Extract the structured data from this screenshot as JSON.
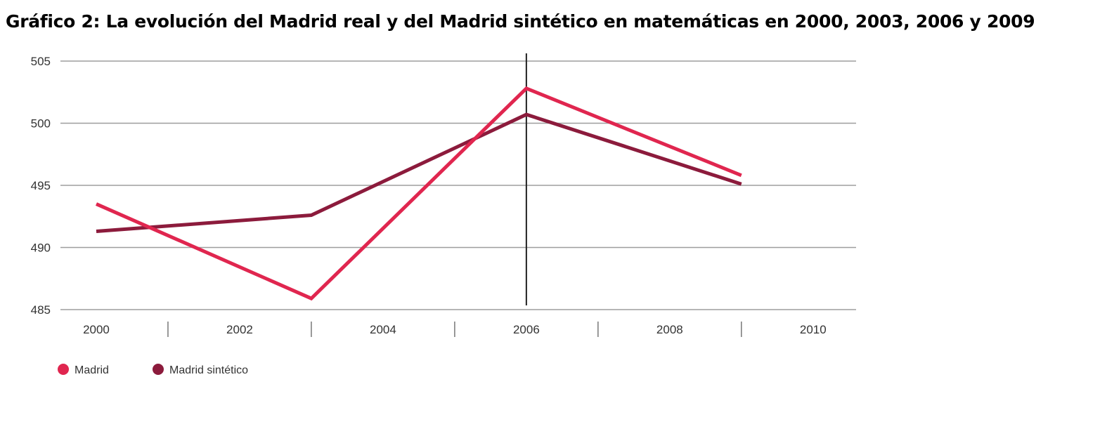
{
  "chart_data": {
    "type": "line",
    "title": "Gráfico 2: La evolución del Madrid real y del Madrid sintético en matemáticas en 2000, 2003, 2006 y 2009",
    "xlabel": "",
    "ylabel": "",
    "x_ticks": [
      "2000",
      "2002",
      "2004",
      "2006",
      "2008",
      "2010"
    ],
    "xlim": [
      1999.5,
      2010.6
    ],
    "y_ticks": [
      505,
      500,
      495,
      490,
      485
    ],
    "ylim": [
      485,
      505
    ],
    "grid": true,
    "reference_line_x": 2006,
    "legend_position": "bottom-left",
    "series": [
      {
        "name": "Madrid",
        "color": "#e0264f",
        "x": [
          2000,
          2003,
          2006,
          2009
        ],
        "values": [
          493.5,
          485.9,
          502.8,
          495.8
        ]
      },
      {
        "name": "Madrid sintético",
        "color": "#8c1b3c",
        "x": [
          2000,
          2003,
          2006,
          2009
        ],
        "values": [
          491.3,
          492.6,
          500.7,
          495.1
        ]
      }
    ]
  }
}
